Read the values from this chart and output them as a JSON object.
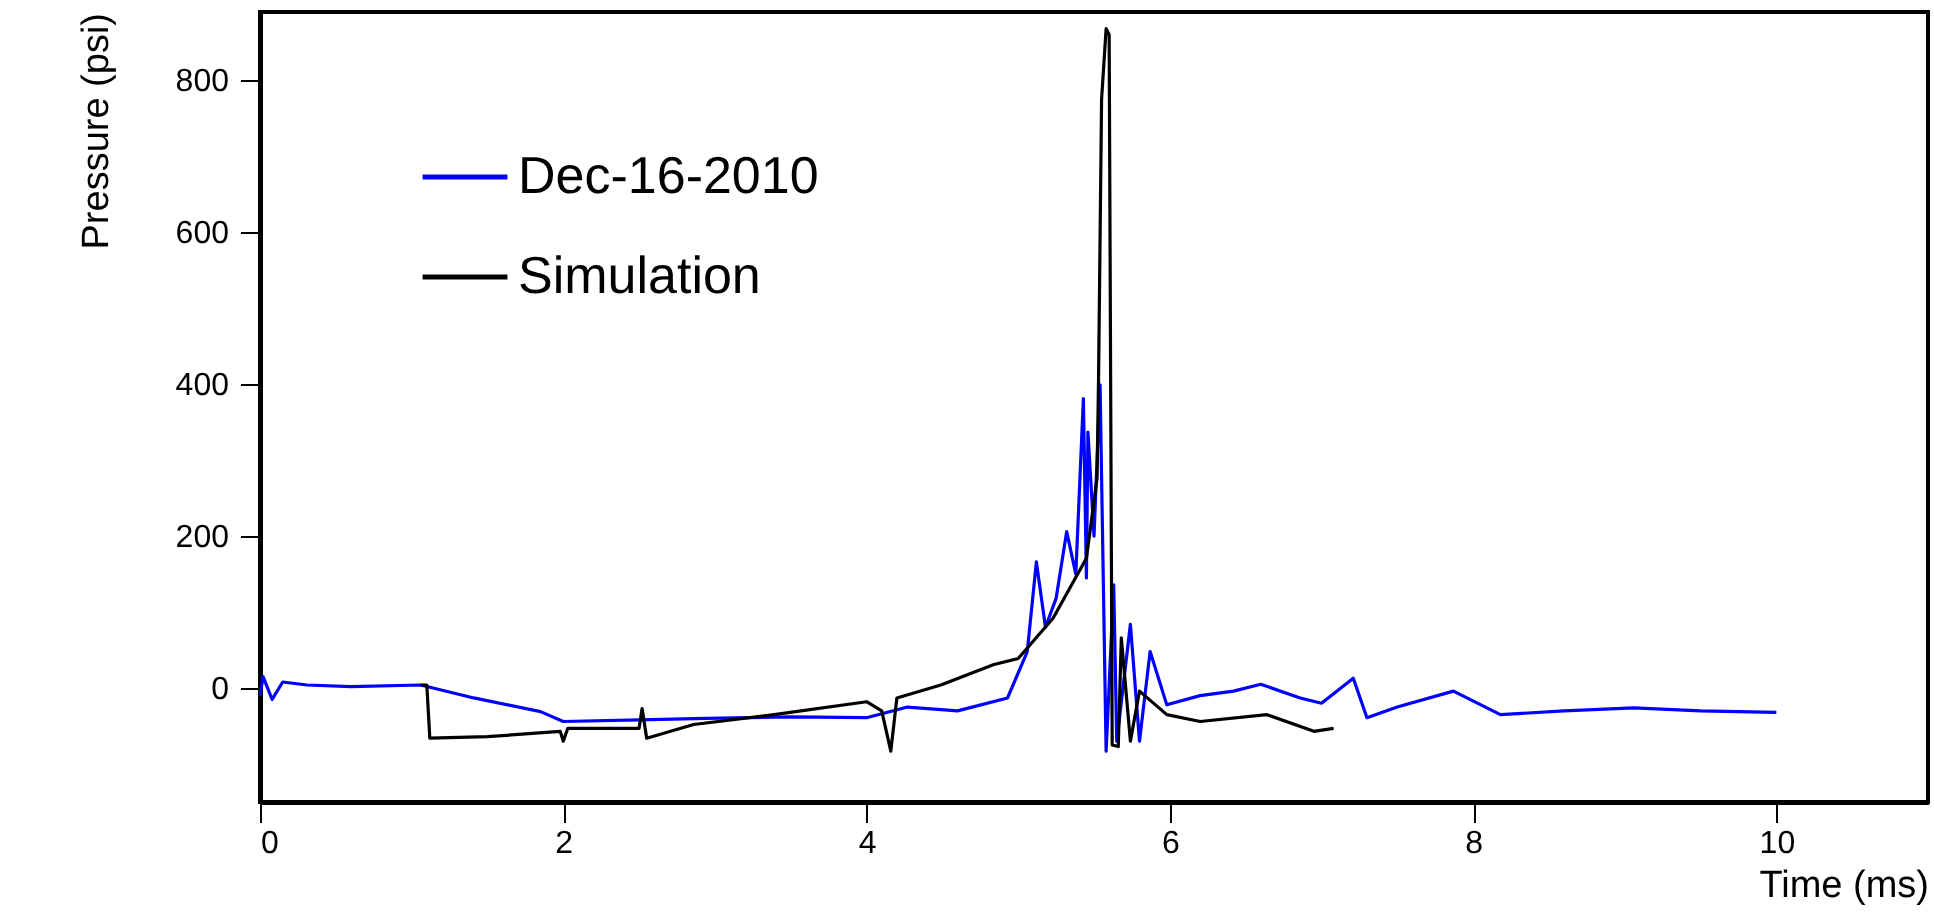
{
  "chart_data": {
    "type": "line",
    "xlabel": "Time (ms)",
    "ylabel": "Pressure (psi)",
    "xlim": [
      0,
      11
    ],
    "xticks": [
      0,
      2,
      4,
      6,
      8,
      10
    ],
    "ylim": [
      -150,
      890
    ],
    "yticks": [
      0,
      200,
      400,
      600,
      800
    ],
    "grid": false,
    "legend": "top left",
    "series": [
      {
        "name": "Dec-16-2010",
        "color": "#0000ff",
        "x": [
          0.0,
          0.02,
          0.08,
          0.15,
          0.31,
          0.6,
          1.06,
          1.41,
          1.85,
          2.0,
          2.5,
          2.94,
          3.5,
          4.0,
          4.27,
          4.6,
          4.93,
          5.06,
          5.12,
          5.18,
          5.25,
          5.32,
          5.38,
          5.43,
          5.45,
          5.46,
          5.5,
          5.54,
          5.58,
          5.63,
          5.65,
          5.74,
          5.8,
          5.87,
          5.98,
          6.2,
          6.42,
          6.6,
          6.86,
          7.0,
          7.21,
          7.3,
          7.5,
          7.87,
          8.18,
          8.6,
          9.06,
          9.5,
          10.0
        ],
        "values": [
          -10,
          15,
          -15,
          8,
          4,
          2,
          4,
          -13,
          -31,
          -44,
          -42,
          -40,
          -38,
          -39,
          -25,
          -30,
          -13,
          48,
          166,
          80,
          118,
          206,
          150,
          381,
          145,
          337,
          200,
          399,
          -83,
          136,
          -70,
          84,
          -70,
          48,
          -22,
          -10,
          -4,
          5,
          -13,
          -20,
          13,
          -39,
          -25,
          -4,
          -35,
          -30,
          -26,
          -30,
          -32
        ]
      },
      {
        "name": "Simulation",
        "color": "#000000",
        "x": [
          1.06,
          1.1,
          1.12,
          1.5,
          1.98,
          2.0,
          2.03,
          2.5,
          2.52,
          2.55,
          2.86,
          3.39,
          4.0,
          4.1,
          4.16,
          4.2,
          4.49,
          4.84,
          5.0,
          5.23,
          5.45,
          5.52,
          5.53,
          5.55,
          5.58,
          5.6,
          5.62,
          5.66,
          5.68,
          5.74,
          5.8,
          5.98,
          6.2,
          6.64,
          6.95,
          7.08
        ],
        "values": [
          4,
          4,
          -66,
          -64,
          -57,
          -70,
          -53,
          -53,
          -27,
          -66,
          -48,
          -35,
          -18,
          -30,
          -83,
          -13,
          4,
          31,
          39,
          92,
          171,
          276,
          407,
          775,
          868,
          860,
          -75,
          -77,
          66,
          -70,
          -4,
          -35,
          -44,
          -35,
          -57,
          -53
        ]
      }
    ]
  }
}
